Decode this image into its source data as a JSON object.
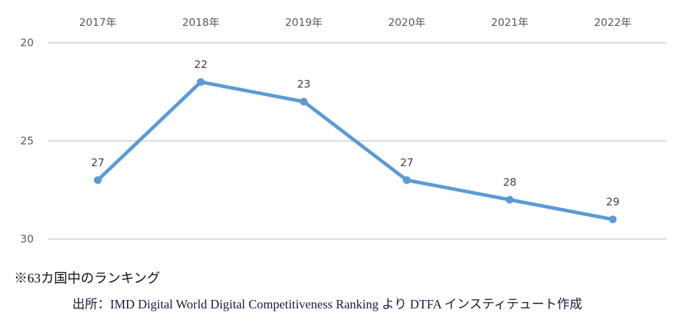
{
  "chart_data": {
    "type": "line",
    "categories": [
      "2017年",
      "2018年",
      "2019年",
      "2020年",
      "2021年",
      "2022年"
    ],
    "series": [
      {
        "name": "Ranking",
        "values": [
          27,
          22,
          23,
          27,
          28,
          29
        ]
      }
    ],
    "y_ticks": [
      "20",
      "25",
      "30"
    ],
    "ylim": [
      20,
      30
    ],
    "y_inverted": true,
    "x_axis_position": "top",
    "grid": true,
    "line_color": "#5b9bd5",
    "title": "",
    "xlabel": "",
    "ylabel": ""
  },
  "notes": {
    "footnote": "※63カ国中のランキング",
    "source": "出所：IMD Digital World Digital Competitiveness Ranking より DTFA インスティテュート作成"
  }
}
